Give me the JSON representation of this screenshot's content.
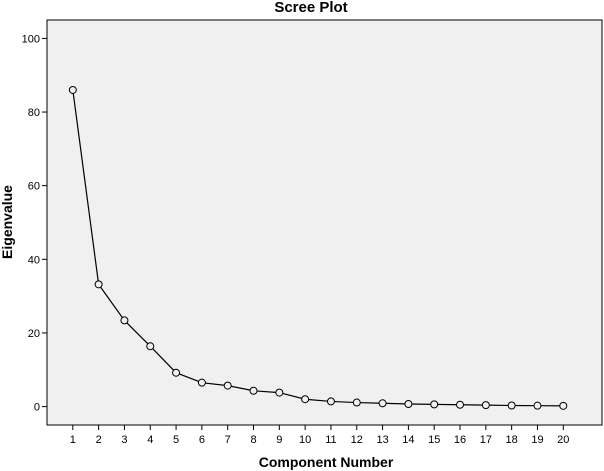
{
  "chart_data": {
    "type": "line",
    "title": "Scree Plot",
    "xlabel": "Component Number",
    "ylabel": "Eigenvalue",
    "x": [
      1,
      2,
      3,
      4,
      5,
      6,
      7,
      8,
      9,
      10,
      11,
      12,
      13,
      14,
      15,
      16,
      17,
      18,
      19,
      20
    ],
    "series": [
      {
        "values": [
          86.0,
          33.2,
          23.4,
          16.4,
          9.2,
          6.5,
          5.7,
          4.3,
          3.8,
          2.0,
          1.4,
          1.1,
          0.9,
          0.7,
          0.6,
          0.5,
          0.4,
          0.3,
          0.25,
          0.2
        ]
      }
    ],
    "ylim": [
      -5,
      105
    ],
    "yticks": [
      0,
      20,
      40,
      60,
      80,
      100
    ],
    "xticks": [
      1,
      2,
      3,
      4,
      5,
      6,
      7,
      8,
      9,
      10,
      11,
      12,
      13,
      14,
      15,
      16,
      17,
      18,
      19,
      20
    ],
    "xlim": [
      0,
      21.5
    ],
    "grid": false,
    "marker": "open-circle",
    "colors": {
      "plot_background": "#f0f0f0",
      "line": "#000000",
      "marker_fill": "#f0f0f0"
    }
  }
}
